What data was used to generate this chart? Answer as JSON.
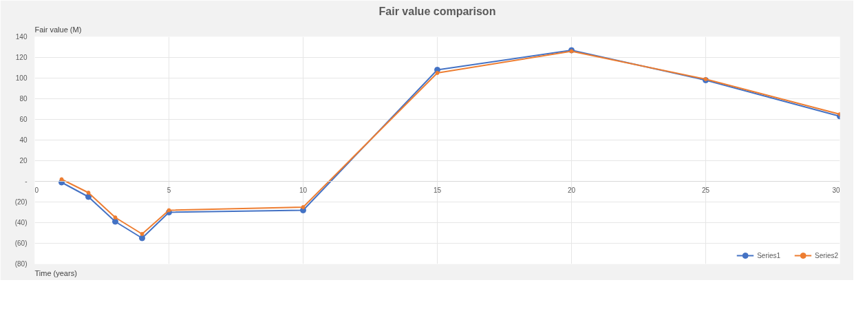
{
  "chart_data": {
    "type": "line",
    "title": "Fair value comparison",
    "xlabel": "Time (years)",
    "ylabel": "Fair value (M)",
    "x": [
      1,
      2,
      3,
      4,
      5,
      10,
      15,
      20,
      25,
      30
    ],
    "series": [
      {
        "name": "Series1",
        "color": "#4472c4",
        "values": [
          -1,
          -15,
          -39,
          -55,
          -30,
          -28,
          108,
          127,
          98,
          63
        ]
      },
      {
        "name": "Series2",
        "color": "#ed7d31",
        "values": [
          2,
          -11,
          -35,
          -51,
          -28,
          -25,
          105,
          126,
          99,
          65
        ]
      }
    ],
    "xlim": [
      0,
      30
    ],
    "ylim": [
      -80,
      140
    ],
    "xticks": [
      0,
      5,
      10,
      15,
      20,
      25,
      30
    ],
    "yticks": [
      {
        "value": -80,
        "label": "(80)"
      },
      {
        "value": -60,
        "label": "(60)"
      },
      {
        "value": -40,
        "label": "(40)"
      },
      {
        "value": -20,
        "label": "(20)"
      },
      {
        "value": 0,
        "label": "-"
      },
      20,
      40,
      60,
      80,
      100,
      120,
      140
    ],
    "grid": true,
    "legend": "bottom right",
    "marker": "circle",
    "line_style": "solid"
  }
}
